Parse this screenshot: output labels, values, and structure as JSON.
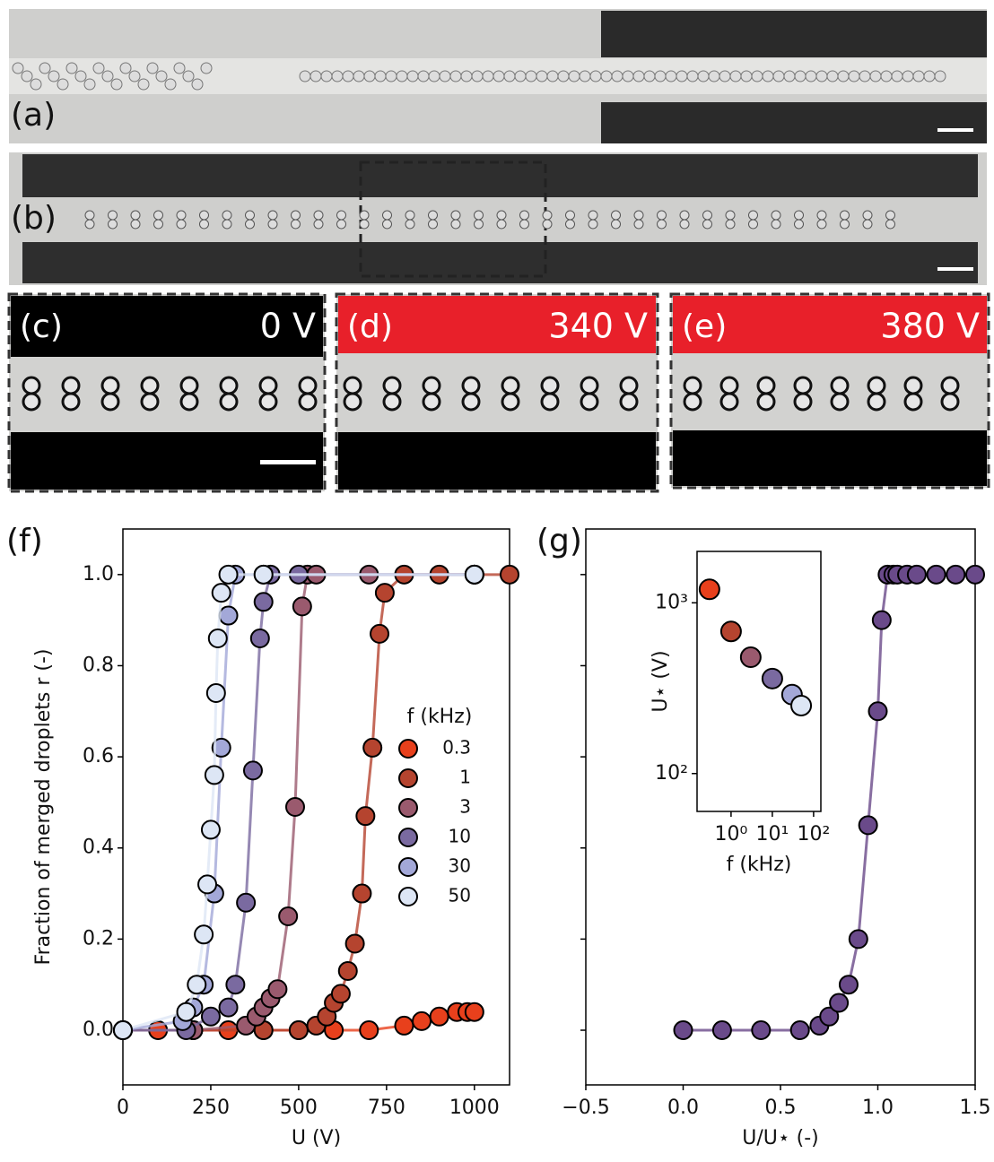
{
  "micrographs": [
    {
      "label": "(a)"
    },
    {
      "label": "(b)"
    },
    {
      "label": "(c)",
      "voltage": "0 V"
    },
    {
      "label": "(d)",
      "voltage": "340 V"
    },
    {
      "label": "(e)",
      "voltage": "380 V"
    }
  ],
  "chart_data": [
    {
      "type": "scatter",
      "label": "(f)",
      "xlabel": "U (V)",
      "ylabel": "Fraction of merged droplets r (-)",
      "xlim": [
        0,
        1100
      ],
      "xticks": [
        0,
        250,
        500,
        750,
        1000
      ],
      "ylim": [
        -0.12,
        1.1
      ],
      "yticks": [
        {
          "value": 0,
          "label": "0.0"
        },
        {
          "value": 0.2,
          "label": "0.2"
        },
        {
          "value": 0.4,
          "label": "0.4"
        },
        {
          "value": 0.6,
          "label": "0.6"
        },
        {
          "value": 0.8,
          "label": "0.8"
        },
        {
          "value": 1,
          "label": "1.0"
        }
      ],
      "connect": true,
      "legend": "center right",
      "legend_title": "f (kHz)",
      "series": [
        {
          "name": "0.3",
          "color": "#e8401c",
          "x": [
            0,
            100,
            200,
            300,
            400,
            500,
            600,
            700,
            800,
            850,
            900,
            950,
            980,
            1000
          ],
          "values": [
            0,
            0,
            0,
            0,
            0,
            0,
            0,
            0,
            0.01,
            0.02,
            0.03,
            0.04,
            0.04,
            0.04
          ]
        },
        {
          "name": "1",
          "color": "#b5442f",
          "x": [
            0,
            200,
            400,
            500,
            550,
            580,
            600,
            620,
            640,
            660,
            680,
            690,
            710,
            730,
            745,
            800,
            900,
            1000,
            1100
          ],
          "values": [
            0,
            0,
            0,
            0,
            0.01,
            0.03,
            0.06,
            0.08,
            0.13,
            0.19,
            0.3,
            0.47,
            0.62,
            0.87,
            0.96,
            1,
            1,
            1,
            1
          ]
        },
        {
          "name": "3",
          "color": "#9a5a6e",
          "x": [
            0,
            200,
            350,
            380,
            400,
            420,
            440,
            470,
            490,
            510,
            525,
            550,
            700,
            1000
          ],
          "values": [
            0,
            0,
            0.01,
            0.03,
            0.05,
            0.07,
            0.09,
            0.25,
            0.49,
            0.93,
            1,
            1,
            1,
            1
          ]
        },
        {
          "name": "10",
          "color": "#7a6aa0",
          "x": [
            0,
            180,
            250,
            300,
            320,
            350,
            370,
            390,
            400,
            420,
            500,
            1000
          ],
          "values": [
            0,
            0,
            0.03,
            0.05,
            0.1,
            0.28,
            0.57,
            0.86,
            0.94,
            1,
            1,
            1
          ]
        },
        {
          "name": "30",
          "color": "#a3a8d8",
          "x": [
            0,
            170,
            200,
            230,
            260,
            280,
            300,
            320,
            400,
            1000
          ],
          "values": [
            0,
            0.02,
            0.05,
            0.1,
            0.3,
            0.62,
            0.91,
            1,
            1,
            1
          ]
        },
        {
          "name": "50",
          "color": "#dde6f5",
          "x": [
            0,
            180,
            210,
            230,
            240,
            250,
            260,
            265,
            270,
            280,
            300,
            400,
            1000
          ],
          "values": [
            0,
            0.04,
            0.1,
            0.21,
            0.32,
            0.44,
            0.56,
            0.74,
            0.86,
            0.96,
            1,
            1,
            1
          ]
        }
      ]
    },
    {
      "type": "scatter",
      "label": "(g)",
      "xlabel": "U/U⋆ (-)",
      "xlim": [
        -0.5,
        1.5
      ],
      "xticks": [
        {
          "value": -0.5,
          "label": "−0.5"
        },
        {
          "value": 0,
          "label": "0.0"
        },
        {
          "value": 0.5,
          "label": "0.5"
        },
        {
          "value": 1,
          "label": "1.0"
        },
        {
          "value": 1.5,
          "label": "1.5"
        }
      ],
      "ylim": [
        -0.12,
        1.1
      ],
      "yticks": [
        0,
        0.2,
        0.4,
        0.6,
        0.8,
        1
      ],
      "connect": true,
      "series": [
        {
          "color": "#6a4a8a",
          "x": [
            0,
            0.2,
            0.4,
            0.6,
            0.7,
            0.75,
            0.8,
            0.85,
            0.9,
            0.95,
            1,
            1.02,
            1.05,
            1.08,
            1.1,
            1.15,
            1.2,
            1.3,
            1.4,
            1.5
          ],
          "values": [
            0,
            0,
            0,
            0,
            0.01,
            0.03,
            0.06,
            0.1,
            0.2,
            0.45,
            0.7,
            0.9,
            1,
            1,
            1,
            1,
            1,
            1,
            1,
            1
          ]
        }
      ]
    },
    {
      "type": "scatter",
      "xlabel": "f (kHz)",
      "ylabel": "U⋆ (V)",
      "log_x": true,
      "log_y": true,
      "xlim": [
        0.15,
        150
      ],
      "xticks": [
        {
          "value": 1,
          "label": "10⁰"
        },
        {
          "value": 10,
          "label": "10¹"
        },
        {
          "value": 100,
          "label": "10²"
        }
      ],
      "ylim": [
        60,
        2000
      ],
      "yticks": [
        {
          "value": 100,
          "label": "10²"
        },
        {
          "value": 1000,
          "label": "10³"
        }
      ],
      "connect": false,
      "series": [
        {
          "colors": [
            "#e8401c",
            "#b5442f",
            "#9a5a6e",
            "#7a6aa0",
            "#a3a8d8",
            "#dde6f5"
          ],
          "x": [
            0.3,
            1,
            3,
            10,
            30,
            50
          ],
          "values": [
            1200,
            680,
            480,
            360,
            290,
            250
          ]
        }
      ]
    }
  ]
}
